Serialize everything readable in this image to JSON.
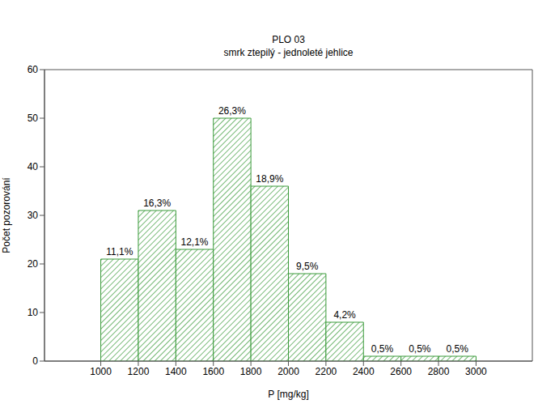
{
  "chart_data": {
    "type": "histogram",
    "title": "PLO 03",
    "subtitle": "smrk ztepilý - jednoleté jehlice",
    "x_label": "P [mg/kg]",
    "y_label": "Počet pozorování",
    "bins": [
      1000,
      1200,
      1400,
      1600,
      1800,
      2000,
      2200,
      2400,
      2600,
      2800,
      3000
    ],
    "values": [
      21,
      31,
      23,
      50,
      36,
      18,
      8,
      1,
      1,
      1
    ],
    "bar_labels": [
      "11,1%",
      "16,3%",
      "12,1%",
      "26,3%",
      "18,9%",
      "9,5%",
      "4,2%",
      "0,5%",
      "0,5%",
      "0,5%"
    ],
    "color": "#3a9a3a",
    "xlim": [
      700,
      3300
    ],
    "ylim": [
      0,
      60
    ],
    "xticks": [
      1000,
      1200,
      1400,
      1600,
      1800,
      2000,
      2200,
      2400,
      2600,
      2800,
      3000
    ],
    "yticks": [
      0,
      10,
      20,
      30,
      40,
      50,
      60
    ],
    "grid": false
  }
}
